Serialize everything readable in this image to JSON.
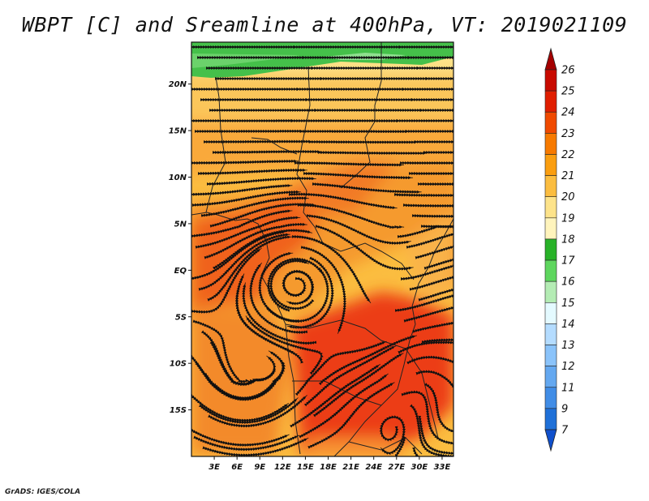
{
  "title": "WBPT [C] and Sreamline at 400hPa, VT: 2019021109",
  "credit": "GrADS: IGES/COLA",
  "map": {
    "lat_labels": [
      "20N",
      "15N",
      "10N",
      "5N",
      "EQ",
      "5S",
      "10S",
      "15S"
    ],
    "lat_values": [
      20,
      15,
      10,
      5,
      0,
      -5,
      -10,
      -15
    ],
    "lon_labels": [
      "3E",
      "6E",
      "9E",
      "12E",
      "15E",
      "18E",
      "21E",
      "24E",
      "27E",
      "30E",
      "33E"
    ],
    "lon_values": [
      3,
      6,
      9,
      12,
      15,
      18,
      21,
      24,
      27,
      30,
      33
    ],
    "lon_range": [
      0,
      34.5
    ],
    "lat_range": [
      -20,
      24.5
    ]
  },
  "colorbar": {
    "labels": [
      "26",
      "25",
      "24",
      "23",
      "22",
      "21",
      "20",
      "19",
      "18",
      "17",
      "16",
      "15",
      "14",
      "13",
      "12",
      "11",
      "9",
      "7"
    ],
    "colors": [
      "#a50000",
      "#c80a00",
      "#e01e00",
      "#f04a00",
      "#f77a00",
      "#fa9e10",
      "#fbbd40",
      "#fde38a",
      "#fff4bc",
      "#28b228",
      "#5ed65e",
      "#b4ecb4",
      "#e4faff",
      "#b4dcff",
      "#8ac3fa",
      "#64a8f0",
      "#418de6",
      "#1f70d8",
      "#1050cc"
    ]
  },
  "colors": {
    "green_band": "#45c04a",
    "orange": "#f8a030",
    "red_orange": "#f05a1c",
    "red": "#ec3c14"
  }
}
